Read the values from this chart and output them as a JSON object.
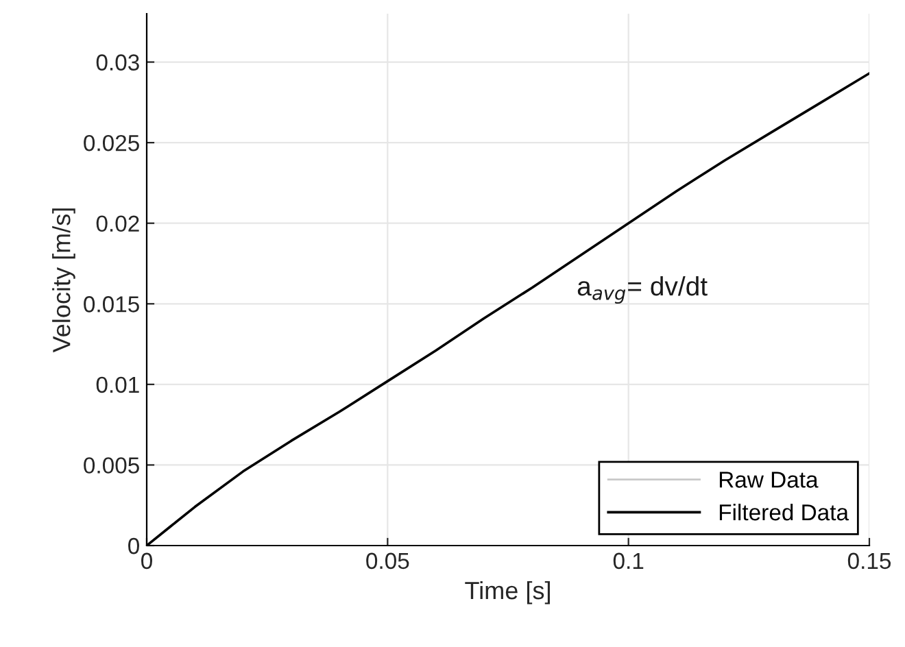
{
  "chart_data": {
    "type": "line",
    "xlabel": "Time [s]",
    "ylabel": "Velocity [m/s]",
    "x": [
      0,
      0.005,
      0.01,
      0.02,
      0.03,
      0.04,
      0.05,
      0.06,
      0.07,
      0.08,
      0.09,
      0.1,
      0.11,
      0.12,
      0.13,
      0.14,
      0.15
    ],
    "series": [
      {
        "name": "Raw Data",
        "color": "#c8c8c8",
        "values": [
          null,
          null,
          null,
          null,
          null,
          null,
          null,
          null,
          null,
          null,
          null,
          null,
          null,
          null,
          null,
          null,
          null
        ]
      },
      {
        "name": "Filtered Data",
        "color": "#000000",
        "values": [
          0,
          0.0012,
          0.0024,
          0.0046,
          0.0065,
          0.0083,
          0.0102,
          0.0121,
          0.0141,
          0.016,
          0.018,
          0.02,
          0.022,
          0.0239,
          0.0257,
          0.0275,
          0.0293
        ]
      }
    ],
    "annotations": [
      "a$_{avg}$= dv/dt"
    ],
    "xlim": [
      0,
      0.15
    ],
    "ylim": [
      0,
      0.033
    ],
    "xticks": [
      0,
      0.05,
      0.1,
      0.15
    ],
    "yticks": [
      0,
      0.005,
      0.01,
      0.015,
      0.02,
      0.025,
      0.03
    ],
    "grid": true,
    "legend": "bottom right",
    "line_style": "solid",
    "marker": "none"
  }
}
